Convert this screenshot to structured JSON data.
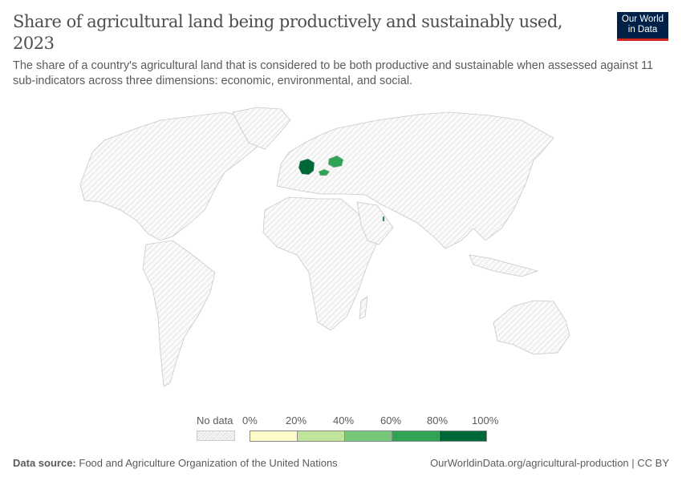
{
  "header": {
    "title": "Share of agricultural land being productively and sustainably used, 2023",
    "subtitle": "The share of a country's agricultural land that is considered to be both productive and sustainable when assessed against 11 sub-indicators across three dimensions: economic, environmental, and social.",
    "logo": "Our World in Data"
  },
  "legend": {
    "no_data_label": "No data",
    "ticks": [
      "0%",
      "20%",
      "40%",
      "60%",
      "80%",
      "100%"
    ],
    "bin_colors": [
      "#fefcc8",
      "#c0e59a",
      "#78c679",
      "#31a354",
      "#006837"
    ],
    "no_data_color": "#e6e6e6"
  },
  "map_data": {
    "highlighted": [
      {
        "region": "germany",
        "bin": "80%-100%",
        "color": "#006837"
      },
      {
        "region": "belarus",
        "bin": "60%-80%",
        "color": "#31a354"
      },
      {
        "region": "hungary",
        "bin": "60%-80%",
        "color": "#31a354"
      },
      {
        "region": "qatar",
        "bin": "80%-100%",
        "color": "#006837"
      }
    ]
  },
  "footer": {
    "source_label": "Data source:",
    "source": "Food and Agriculture Organization of the United Nations",
    "url": "OurWorldinData.org/agricultural-production | CC BY"
  }
}
